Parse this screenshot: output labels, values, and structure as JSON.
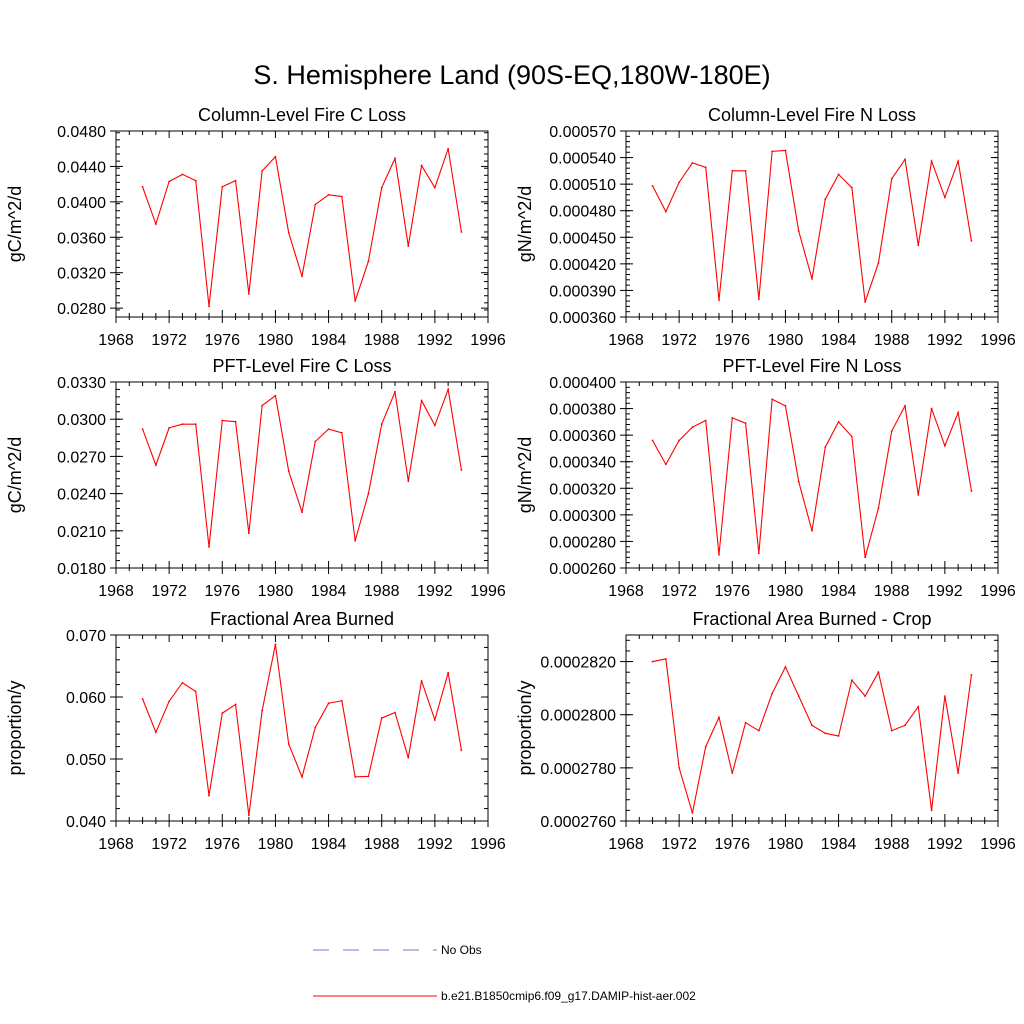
{
  "figure": {
    "title": "S. Hemisphere Land (90S-EQ,180W-180E)"
  },
  "colors": {
    "series": "#ff0000",
    "obs": "#7b7bd0",
    "axis": "#000000"
  },
  "legend": {
    "placement": "bottom-center",
    "entries": [
      {
        "label": "No Obs",
        "style": "dashed",
        "color": "#7b7bd0"
      },
      {
        "label": "b.e21.B1850cmip6.f09_g17.DAMIP-hist-aer.002",
        "style": "solid",
        "color": "#ff0000"
      }
    ]
  },
  "chart_data": [
    {
      "type": "line",
      "title": "Column-Level Fire C Loss",
      "xlabel": "",
      "ylabel": "gC/m^2/d",
      "xlim": [
        1968,
        1996
      ],
      "ylim": [
        0.027,
        0.048
      ],
      "xticks": [
        "1968",
        "1972",
        "1976",
        "1980",
        "1984",
        "1988",
        "1992",
        "1996"
      ],
      "yticks": [
        "0.0280",
        "0.0320",
        "0.0360",
        "0.0400",
        "0.0440",
        "0.0480"
      ],
      "grid": false,
      "x": [
        1970,
        1971,
        1972,
        1973,
        1974,
        1975,
        1976,
        1977,
        1978,
        1979,
        1980,
        1981,
        1982,
        1983,
        1984,
        1985,
        1986,
        1987,
        1988,
        1989,
        1990,
        1991,
        1992,
        1993,
        1994
      ],
      "series": [
        {
          "values": [
            0.0417,
            0.0375,
            0.0423,
            0.0431,
            0.0424,
            0.0282,
            0.0417,
            0.0424,
            0.0296,
            0.0435,
            0.0451,
            0.0365,
            0.0316,
            0.0397,
            0.0408,
            0.0406,
            0.0288,
            0.0333,
            0.0416,
            0.0449,
            0.035,
            0.0441,
            0.0416,
            0.046,
            0.0366
          ]
        }
      ]
    },
    {
      "type": "line",
      "title": "Column-Level Fire N Loss",
      "xlabel": "",
      "ylabel": "gN/m^2/d",
      "xlim": [
        1968,
        1996
      ],
      "ylim": [
        0.00036,
        0.00057
      ],
      "xticks": [
        "1968",
        "1972",
        "1976",
        "1980",
        "1984",
        "1988",
        "1992",
        "1996"
      ],
      "yticks": [
        "0.000360",
        "0.000390",
        "0.000420",
        "0.000450",
        "0.000480",
        "0.000510",
        "0.000540",
        "0.000570"
      ],
      "grid": false,
      "x": [
        1970,
        1971,
        1972,
        1973,
        1974,
        1975,
        1976,
        1977,
        1978,
        1979,
        1980,
        1981,
        1982,
        1983,
        1984,
        1985,
        1986,
        1987,
        1988,
        1989,
        1990,
        1991,
        1992,
        1993,
        1994
      ],
      "series": [
        {
          "values": [
            0.000508,
            0.000479,
            0.000512,
            0.000534,
            0.000529,
            0.000379,
            0.000525,
            0.000525,
            0.00038,
            0.000547,
            0.000548,
            0.000457,
            0.000403,
            0.000493,
            0.000521,
            0.000506,
            0.000377,
            0.000421,
            0.000516,
            0.000538,
            0.000441,
            0.000536,
            0.000495,
            0.000536,
            0.000446
          ]
        }
      ]
    },
    {
      "type": "line",
      "title": "PFT-Level Fire C Loss",
      "xlabel": "",
      "ylabel": "gC/m^2/d",
      "xlim": [
        1968,
        1996
      ],
      "ylim": [
        0.018,
        0.033
      ],
      "xticks": [
        "1968",
        "1972",
        "1976",
        "1980",
        "1984",
        "1988",
        "1992",
        "1996"
      ],
      "yticks": [
        "0.0180",
        "0.0210",
        "0.0240",
        "0.0270",
        "0.0300",
        "0.0330"
      ],
      "grid": false,
      "x": [
        1970,
        1971,
        1972,
        1973,
        1974,
        1975,
        1976,
        1977,
        1978,
        1979,
        1980,
        1981,
        1982,
        1983,
        1984,
        1985,
        1986,
        1987,
        1988,
        1989,
        1990,
        1991,
        1992,
        1993,
        1994
      ],
      "series": [
        {
          "values": [
            0.0292,
            0.0263,
            0.0293,
            0.0296,
            0.0296,
            0.0197,
            0.0299,
            0.0298,
            0.0208,
            0.0311,
            0.0319,
            0.0258,
            0.0225,
            0.0282,
            0.0292,
            0.0289,
            0.0202,
            0.024,
            0.0296,
            0.0322,
            0.025,
            0.0315,
            0.0295,
            0.0324,
            0.0259
          ]
        }
      ]
    },
    {
      "type": "line",
      "title": "PFT-Level Fire N Loss",
      "xlabel": "",
      "ylabel": "gN/m^2/d",
      "xlim": [
        1968,
        1996
      ],
      "ylim": [
        0.00026,
        0.0004
      ],
      "xticks": [
        "1968",
        "1972",
        "1976",
        "1980",
        "1984",
        "1988",
        "1992",
        "1996"
      ],
      "yticks": [
        "0.000260",
        "0.000280",
        "0.000300",
        "0.000320",
        "0.000340",
        "0.000360",
        "0.000380",
        "0.000400"
      ],
      "grid": false,
      "x": [
        1970,
        1971,
        1972,
        1973,
        1974,
        1975,
        1976,
        1977,
        1978,
        1979,
        1980,
        1981,
        1982,
        1983,
        1984,
        1985,
        1986,
        1987,
        1988,
        1989,
        1990,
        1991,
        1992,
        1993,
        1994
      ],
      "series": [
        {
          "values": [
            0.000356,
            0.000338,
            0.000356,
            0.000366,
            0.000371,
            0.00027,
            0.000373,
            0.000369,
            0.000271,
            0.000387,
            0.000382,
            0.000325,
            0.000288,
            0.000351,
            0.00037,
            0.000359,
            0.000268,
            0.000305,
            0.000363,
            0.000382,
            0.000315,
            0.00038,
            0.000352,
            0.000377,
            0.000318
          ]
        }
      ]
    },
    {
      "type": "line",
      "title": "Fractional Area Burned",
      "xlabel": "",
      "ylabel": "proportion/y",
      "xlim": [
        1968,
        1996
      ],
      "ylim": [
        0.04,
        0.07
      ],
      "xticks": [
        "1968",
        "1972",
        "1976",
        "1980",
        "1984",
        "1988",
        "1992",
        "1996"
      ],
      "yticks": [
        "0.040",
        "0.050",
        "0.060",
        "0.070"
      ],
      "grid": false,
      "x": [
        1970,
        1971,
        1972,
        1973,
        1974,
        1975,
        1976,
        1977,
        1978,
        1979,
        1980,
        1981,
        1982,
        1983,
        1984,
        1985,
        1986,
        1987,
        1988,
        1989,
        1990,
        1991,
        1992,
        1993,
        1994
      ],
      "series": [
        {
          "values": [
            0.0597,
            0.0543,
            0.0593,
            0.0623,
            0.0609,
            0.0441,
            0.0574,
            0.0588,
            0.0409,
            0.0578,
            0.0685,
            0.0524,
            0.0471,
            0.0551,
            0.059,
            0.0594,
            0.0471,
            0.0472,
            0.0566,
            0.0575,
            0.0502,
            0.0626,
            0.0563,
            0.0639,
            0.0514
          ]
        }
      ]
    },
    {
      "type": "line",
      "title": "Fractional Area Burned - Crop",
      "xlabel": "",
      "ylabel": "proportion/y",
      "xlim": [
        1968,
        1996
      ],
      "ylim": [
        0.000276,
        0.000283
      ],
      "xticks": [
        "1968",
        "1972",
        "1976",
        "1980",
        "1984",
        "1988",
        "1992",
        "1996"
      ],
      "yticks": [
        "0.0002760",
        "0.0002780",
        "0.0002800",
        "0.0002820"
      ],
      "grid": false,
      "x": [
        1970,
        1971,
        1972,
        1973,
        1974,
        1975,
        1976,
        1977,
        1978,
        1979,
        1980,
        1981,
        1982,
        1983,
        1984,
        1985,
        1986,
        1987,
        1988,
        1989,
        1990,
        1991,
        1992,
        1993,
        1994
      ],
      "series": [
        {
          "values": [
            0.000282,
            0.0002821,
            0.000278,
            0.0002763,
            0.0002788,
            0.0002799,
            0.0002778,
            0.0002797,
            0.0002794,
            0.0002808,
            0.0002818,
            0.0002807,
            0.0002796,
            0.0002793,
            0.0002792,
            0.0002813,
            0.0002807,
            0.0002816,
            0.0002794,
            0.0002796,
            0.0002803,
            0.0002764,
            0.0002807,
            0.0002778,
            0.0002815
          ]
        }
      ]
    }
  ]
}
